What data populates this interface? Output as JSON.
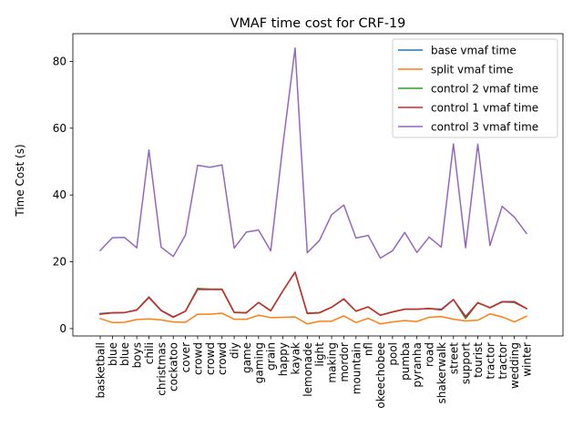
{
  "chart_data": {
    "type": "line",
    "title": "VMAF time cost for CRF-19",
    "xlabel": "",
    "ylabel": "Time Cost (s)",
    "ylim": [
      -2.2,
      88.3
    ],
    "yticks": [
      0,
      20,
      40,
      60,
      80
    ],
    "grid": false,
    "legend_position": "top-right",
    "categories": [
      "basketball",
      "blue",
      "blue",
      "boys",
      "chili",
      "christmas",
      "cockatoo",
      "cover",
      "crowd",
      "crowd",
      "crowd",
      "diy",
      "game",
      "gaming",
      "grain",
      "happy",
      "kayak",
      "lemonade",
      "light",
      "making",
      "mordor",
      "mountain",
      "nfl",
      "okeechobee",
      "pool",
      "pumba",
      "pyranha",
      "road",
      "shakerwalk",
      "street",
      "support",
      "tourist",
      "tractor",
      "tractor",
      "wedding",
      "winter"
    ],
    "series": [
      {
        "name": "base vmaf time",
        "color": "#1f77b4",
        "values": [
          4.5,
          4.8,
          4.8,
          5.6,
          9.5,
          5.5,
          3.5,
          5.2,
          12.0,
          11.8,
          11.8,
          4.9,
          4.8,
          7.8,
          5.4,
          11.3,
          16.9,
          4.6,
          4.8,
          6.4,
          8.8,
          5.2,
          6.5,
          4.0,
          5.0,
          5.8,
          5.8,
          6.0,
          5.8,
          8.7,
          3.7,
          7.7,
          6.3,
          8.1,
          8.1,
          6.0
        ]
      },
      {
        "name": "split vmaf time",
        "color": "#ff7f0e",
        "values": [
          3.0,
          1.8,
          1.9,
          2.7,
          2.9,
          2.6,
          2.0,
          1.9,
          4.3,
          4.3,
          4.6,
          2.8,
          2.8,
          4.0,
          3.3,
          3.4,
          3.5,
          1.4,
          2.2,
          2.2,
          3.8,
          1.8,
          3.1,
          1.4,
          2.0,
          2.4,
          2.1,
          3.4,
          3.6,
          2.8,
          2.3,
          2.5,
          4.4,
          3.5,
          2.0,
          3.7
        ]
      },
      {
        "name": "control 2 vmaf time",
        "color": "#2ca02c",
        "values": [
          4.4,
          4.7,
          4.8,
          5.6,
          9.4,
          5.4,
          3.4,
          5.2,
          12.0,
          11.8,
          11.8,
          4.9,
          4.8,
          7.8,
          5.4,
          11.3,
          16.9,
          4.6,
          4.8,
          6.4,
          8.9,
          5.2,
          6.5,
          4.0,
          5.0,
          5.8,
          5.8,
          6.0,
          5.6,
          8.7,
          3.0,
          7.7,
          6.3,
          8.0,
          7.8,
          6.0
        ]
      },
      {
        "name": "control 1 vmaf time",
        "color": "#d62728",
        "values": [
          4.3,
          4.7,
          4.8,
          5.5,
          9.3,
          5.4,
          3.4,
          5.2,
          11.7,
          11.7,
          11.7,
          4.8,
          4.7,
          7.8,
          5.3,
          11.3,
          16.9,
          4.5,
          4.7,
          6.4,
          8.9,
          5.2,
          6.5,
          4.0,
          5.0,
          5.8,
          5.8,
          6.0,
          5.6,
          8.7,
          3.4,
          7.8,
          6.2,
          8.0,
          8.0,
          6.0
        ]
      },
      {
        "name": "control 3 vmaf time",
        "color": "#9467bd",
        "values": [
          23.4,
          27.2,
          27.3,
          24.2,
          53.5,
          24.4,
          21.6,
          28.0,
          48.9,
          48.3,
          49.0,
          24.1,
          28.9,
          29.5,
          23.3,
          55.0,
          84.0,
          22.7,
          26.4,
          34.1,
          37.0,
          27.1,
          27.9,
          21.1,
          23.3,
          28.8,
          22.8,
          27.4,
          24.4,
          55.3,
          24.2,
          55.2,
          24.9,
          36.6,
          33.4,
          28.5
        ]
      }
    ]
  }
}
